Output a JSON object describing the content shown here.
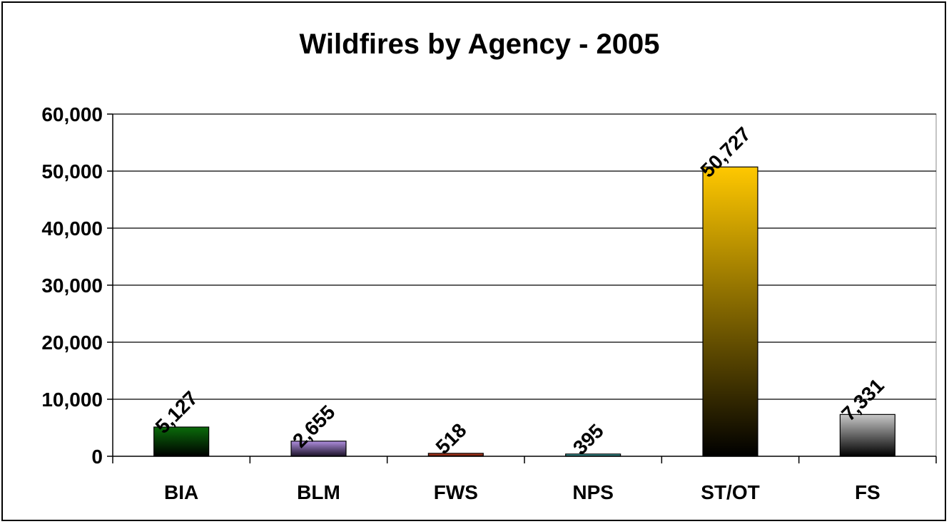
{
  "chart_data": {
    "type": "bar",
    "title": "Wildfires by Agency  - 2005",
    "xlabel": "",
    "ylabel": "",
    "categories": [
      "BIA",
      "BLM",
      "FWS",
      "NPS",
      "ST/OT",
      "FS"
    ],
    "values": [
      5127,
      2655,
      518,
      395,
      50727,
      7331
    ],
    "data_labels": [
      "5,127",
      "2,655",
      "518",
      "395",
      "50,727",
      "7,331"
    ],
    "ylim": [
      0,
      60000
    ],
    "yticks": [
      0,
      10000,
      20000,
      30000,
      40000,
      50000,
      60000
    ],
    "ytick_labels": [
      "0",
      "10,000",
      "20,000",
      "30,000",
      "40,000",
      "50,000",
      "60,000"
    ],
    "grid": true,
    "legend": "none",
    "bar_colors": [
      {
        "top": "#0a6b0a",
        "bottom": "#000000"
      },
      {
        "top": "#b08fe0",
        "bottom": "#1a1226"
      },
      {
        "top": "#e04a2a",
        "bottom": "#3a0a00"
      },
      {
        "top": "#55d8d8",
        "bottom": "#0f3838"
      },
      {
        "top": "#ffc800",
        "bottom": "#000000"
      },
      {
        "top": "#c8c8c8",
        "bottom": "#000000"
      }
    ]
  }
}
